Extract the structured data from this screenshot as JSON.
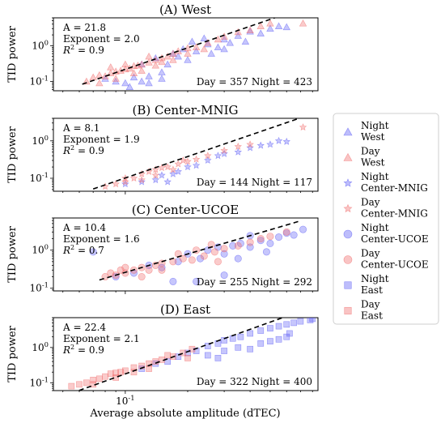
{
  "figure": {
    "xlabel": "Average absolute amplitude (dTEC)",
    "x_tick_label": "10^{-1}"
  },
  "legend": {
    "placement": "right",
    "entries": [
      {
        "line1": "Night",
        "line2": "West",
        "color": "#5b5bf5",
        "marker": "triangle"
      },
      {
        "line1": "Day",
        "line2": "West",
        "color": "#f06b6b",
        "marker": "triangle"
      },
      {
        "line1": "Night",
        "line2": "Center-MNIG",
        "color": "#5b5bf5",
        "marker": "star"
      },
      {
        "line1": "Day",
        "line2": "Center-MNIG",
        "color": "#f06b6b",
        "marker": "star"
      },
      {
        "line1": "Night",
        "line2": "Center-UCOE",
        "color": "#5b5bf5",
        "marker": "circle"
      },
      {
        "line1": "Day",
        "line2": "Center-UCOE",
        "color": "#f06b6b",
        "marker": "circle"
      },
      {
        "line1": "Night",
        "line2": "East",
        "color": "#5b5bf5",
        "marker": "square"
      },
      {
        "line1": "Day",
        "line2": "East",
        "color": "#f06b6b",
        "marker": "square"
      }
    ]
  },
  "chart_data": [
    {
      "type": "scatter",
      "title": "(A) West",
      "ylabel": "TID power",
      "xscale": "log",
      "yscale": "log",
      "xlim": [
        0.045,
        0.85
      ],
      "ylim": [
        0.055,
        6
      ],
      "yticks": [
        {
          "v": 1,
          "label": "10^{0}"
        },
        {
          "v": 0.1,
          "label": "10^{-1}"
        }
      ],
      "marker": "triangle",
      "stats": {
        "A": "A = 21.8",
        "exponent": "Exponent = 2.0",
        "r2": "R^2 = 0.9",
        "counts": "Day = 357 Night = 423"
      },
      "fit": {
        "A": 21.8,
        "exponent": 2.0,
        "x_range": [
          0.062,
          0.75
        ]
      },
      "series": [
        {
          "name": "Day",
          "color": "#f06b6b",
          "points": [
            [
              0.065,
              0.1
            ],
            [
              0.07,
              0.13
            ],
            [
              0.075,
              0.15
            ],
            [
              0.08,
              0.14
            ],
            [
              0.085,
              0.17
            ],
            [
              0.09,
              0.19
            ],
            [
              0.095,
              0.2
            ],
            [
              0.1,
              0.22
            ],
            [
              0.105,
              0.23
            ],
            [
              0.11,
              0.27
            ],
            [
              0.115,
              0.28
            ],
            [
              0.12,
              0.3
            ],
            [
              0.13,
              0.34
            ],
            [
              0.14,
              0.4
            ],
            [
              0.15,
              0.45
            ],
            [
              0.16,
              0.5
            ],
            [
              0.17,
              0.6
            ],
            [
              0.18,
              0.7
            ],
            [
              0.2,
              0.85
            ],
            [
              0.22,
              0.9
            ],
            [
              0.25,
              1.2
            ],
            [
              0.28,
              1.5
            ],
            [
              0.3,
              1.8
            ],
            [
              0.35,
              2.4
            ],
            [
              0.4,
              2.7
            ],
            [
              0.45,
              3.5
            ],
            [
              0.5,
              4.2
            ],
            [
              0.72,
              4.2
            ],
            [
              0.09,
              0.12
            ],
            [
              0.1,
              0.3
            ],
            [
              0.12,
              0.2
            ],
            [
              0.13,
              0.5
            ],
            [
              0.15,
              0.35
            ],
            [
              0.17,
              0.4
            ],
            [
              0.2,
              0.6
            ],
            [
              0.24,
              0.8
            ],
            [
              0.075,
              0.09
            ],
            [
              0.085,
              0.25
            ],
            [
              0.11,
              0.17
            ],
            [
              0.14,
              0.28
            ]
          ]
        },
        {
          "name": "Night",
          "color": "#5b5bf5",
          "points": [
            [
              0.08,
              0.12
            ],
            [
              0.09,
              0.1
            ],
            [
              0.1,
              0.09
            ],
            [
              0.11,
              0.13
            ],
            [
              0.12,
              0.1
            ],
            [
              0.13,
              0.14
            ],
            [
              0.15,
              0.18
            ],
            [
              0.16,
              0.3
            ],
            [
              0.18,
              0.5
            ],
            [
              0.2,
              0.4
            ],
            [
              0.22,
              0.7
            ],
            [
              0.25,
              1.1
            ],
            [
              0.28,
              0.9
            ],
            [
              0.3,
              1.5
            ],
            [
              0.32,
              1.2
            ],
            [
              0.35,
              1.9
            ],
            [
              0.4,
              2.5
            ],
            [
              0.45,
              2.2
            ],
            [
              0.5,
              3.0
            ],
            [
              0.55,
              3.5
            ],
            [
              0.6,
              3.3
            ],
            [
              0.12,
              0.3
            ],
            [
              0.14,
              0.45
            ],
            [
              0.17,
              0.6
            ],
            [
              0.19,
              0.8
            ],
            [
              0.21,
              1.3
            ],
            [
              0.24,
              1.6
            ],
            [
              0.26,
              0.6
            ],
            [
              0.3,
              0.8
            ],
            [
              0.38,
              1.3
            ],
            [
              0.13,
              0.09
            ],
            [
              0.15,
              0.12
            ],
            [
              0.105,
              0.07
            ]
          ]
        }
      ]
    },
    {
      "type": "scatter",
      "title": "(B) Center-MNIG",
      "ylabel": "TID power",
      "xscale": "log",
      "yscale": "log",
      "xlim": [
        0.045,
        0.85
      ],
      "ylim": [
        0.045,
        4
      ],
      "yticks": [
        {
          "v": 1,
          "label": "10^{0}"
        },
        {
          "v": 0.1,
          "label": "10^{-1}"
        }
      ],
      "marker": "star",
      "stats": {
        "A": "A = 8.1",
        "exponent": "Exponent = 1.9",
        "r2": "R^2 = 0.9",
        "counts": "Day = 144 Night = 117"
      },
      "fit": {
        "A": 8.1,
        "exponent": 1.9,
        "x_range": [
          0.07,
          0.7
        ]
      },
      "series": [
        {
          "name": "Day",
          "color": "#f06b6b",
          "points": [
            [
              0.08,
              0.06
            ],
            [
              0.09,
              0.07
            ],
            [
              0.1,
              0.08
            ],
            [
              0.11,
              0.1
            ],
            [
              0.12,
              0.13
            ],
            [
              0.13,
              0.15
            ],
            [
              0.14,
              0.17
            ],
            [
              0.15,
              0.19
            ],
            [
              0.16,
              0.2
            ],
            [
              0.18,
              0.24
            ],
            [
              0.2,
              0.28
            ],
            [
              0.22,
              0.32
            ],
            [
              0.25,
              0.4
            ],
            [
              0.3,
              0.55
            ],
            [
              0.35,
              0.7
            ],
            [
              0.4,
              0.8
            ],
            [
              0.72,
              2.3
            ],
            [
              0.1,
              0.1
            ],
            [
              0.12,
              0.09
            ],
            [
              0.14,
              0.12
            ],
            [
              0.17,
              0.17
            ],
            [
              0.19,
              0.3
            ]
          ]
        },
        {
          "name": "Night",
          "color": "#5b5bf5",
          "points": [
            [
              0.1,
              0.07
            ],
            [
              0.12,
              0.08
            ],
            [
              0.14,
              0.09
            ],
            [
              0.16,
              0.08
            ],
            [
              0.18,
              0.15
            ],
            [
              0.2,
              0.2
            ],
            [
              0.22,
              0.22
            ],
            [
              0.25,
              0.3
            ],
            [
              0.28,
              0.4
            ],
            [
              0.3,
              0.45
            ],
            [
              0.35,
              0.5
            ],
            [
              0.4,
              0.65
            ],
            [
              0.45,
              0.75
            ],
            [
              0.5,
              0.8
            ],
            [
              0.55,
              1.0
            ],
            [
              0.6,
              0.95
            ],
            [
              0.17,
              0.13
            ],
            [
              0.15,
              0.12
            ]
          ]
        }
      ]
    },
    {
      "type": "scatter",
      "title": "(C) Center-UCOE",
      "ylabel": "TID power",
      "xscale": "log",
      "yscale": "log",
      "xlim": [
        0.045,
        0.85
      ],
      "ylim": [
        0.085,
        7
      ],
      "yticks": [
        {
          "v": 1,
          "label": "10^{0}"
        },
        {
          "v": 0.1,
          "label": "10^{-1}"
        }
      ],
      "marker": "circle",
      "stats": {
        "A": "A = 10.4",
        "exponent": "Exponent = 1.6",
        "r2": "R^2 = 0.7",
        "counts": "Day = 255 Night = 292"
      },
      "fit": {
        "A": 10.4,
        "exponent": 1.6,
        "x_range": [
          0.075,
          0.7
        ]
      },
      "series": [
        {
          "name": "Day",
          "color": "#f06b6b",
          "points": [
            [
              0.08,
              0.2
            ],
            [
              0.085,
              0.25
            ],
            [
              0.09,
              0.22
            ],
            [
              0.095,
              0.3
            ],
            [
              0.1,
              0.25
            ],
            [
              0.11,
              0.3
            ],
            [
              0.12,
              0.35
            ],
            [
              0.13,
              0.3
            ],
            [
              0.14,
              0.4
            ],
            [
              0.15,
              0.45
            ],
            [
              0.17,
              0.5
            ],
            [
              0.19,
              0.6
            ],
            [
              0.21,
              0.55
            ],
            [
              0.24,
              0.7
            ],
            [
              0.27,
              0.9
            ],
            [
              0.3,
              1.1
            ],
            [
              0.35,
              1.3
            ],
            [
              0.4,
              1.6
            ],
            [
              0.45,
              2.0
            ],
            [
              0.5,
              2.3
            ],
            [
              0.6,
              3.0
            ],
            [
              0.1,
              0.35
            ],
            [
              0.12,
              0.2
            ],
            [
              0.15,
              0.3
            ],
            [
              0.18,
              0.8
            ],
            [
              0.22,
              1.0
            ],
            [
              0.26,
              1.4
            ],
            [
              0.28,
              0.5
            ]
          ]
        },
        {
          "name": "Night",
          "color": "#5b5bf5",
          "points": [
            [
              0.07,
              0.9
            ],
            [
              0.09,
              0.2
            ],
            [
              0.11,
              0.25
            ],
            [
              0.13,
              0.4
            ],
            [
              0.15,
              0.35
            ],
            [
              0.18,
              0.5
            ],
            [
              0.2,
              0.8
            ],
            [
              0.23,
              0.6
            ],
            [
              0.25,
              1.0
            ],
            [
              0.28,
              1.2
            ],
            [
              0.3,
              0.8
            ],
            [
              0.33,
              1.3
            ],
            [
              0.36,
              1.5
            ],
            [
              0.4,
              1.2
            ],
            [
              0.45,
              1.8
            ],
            [
              0.5,
              1.5
            ],
            [
              0.55,
              2.2
            ],
            [
              0.6,
              2.8
            ],
            [
              0.65,
              2.5
            ],
            [
              0.72,
              3.5
            ],
            [
              0.22,
              0.15
            ],
            [
              0.3,
              0.22
            ],
            [
              0.35,
              0.6
            ],
            [
              0.4,
              2.4
            ],
            [
              0.48,
              0.9
            ],
            [
              0.17,
              0.15
            ]
          ]
        }
      ]
    },
    {
      "type": "scatter",
      "title": "(D) East",
      "ylabel": "TID power",
      "xscale": "log",
      "yscale": "log",
      "xlim": [
        0.045,
        0.85
      ],
      "ylim": [
        0.06,
        7
      ],
      "yticks": [
        {
          "v": 1,
          "label": "10^{0}"
        },
        {
          "v": 0.1,
          "label": "10^{-1}"
        }
      ],
      "marker": "square",
      "stats": {
        "A": "A = 22.4",
        "exponent": "Exponent = 2.1",
        "r2": "R^2 = 0.9",
        "counts": "Day = 322 Night = 400"
      },
      "fit": {
        "A": 22.4,
        "exponent": 2.1,
        "x_range": [
          0.055,
          0.8
        ]
      },
      "series": [
        {
          "name": "Day",
          "color": "#f06b6b",
          "points": [
            [
              0.055,
              0.08
            ],
            [
              0.06,
              0.09
            ],
            [
              0.065,
              0.1
            ],
            [
              0.07,
              0.12
            ],
            [
              0.075,
              0.13
            ],
            [
              0.08,
              0.15
            ],
            [
              0.085,
              0.18
            ],
            [
              0.09,
              0.19
            ],
            [
              0.095,
              0.2
            ],
            [
              0.1,
              0.22
            ],
            [
              0.11,
              0.27
            ],
            [
              0.12,
              0.3
            ],
            [
              0.13,
              0.35
            ],
            [
              0.14,
              0.4
            ],
            [
              0.15,
              0.45
            ],
            [
              0.17,
              0.55
            ],
            [
              0.19,
              0.7
            ],
            [
              0.21,
              0.9
            ],
            [
              0.07,
              0.09
            ],
            [
              0.09,
              0.14
            ],
            [
              0.11,
              0.2
            ],
            [
              0.13,
              0.25
            ],
            [
              0.16,
              0.6
            ],
            [
              0.2,
              0.5
            ]
          ]
        },
        {
          "name": "Night",
          "color": "#5b5bf5",
          "points": [
            [
              0.12,
              0.25
            ],
            [
              0.14,
              0.35
            ],
            [
              0.16,
              0.4
            ],
            [
              0.18,
              0.55
            ],
            [
              0.2,
              0.7
            ],
            [
              0.22,
              0.8
            ],
            [
              0.25,
              1.1
            ],
            [
              0.28,
              1.3
            ],
            [
              0.3,
              1.6
            ],
            [
              0.33,
              1.8
            ],
            [
              0.36,
              2.0
            ],
            [
              0.4,
              2.5
            ],
            [
              0.45,
              3.0
            ],
            [
              0.5,
              3.5
            ],
            [
              0.55,
              4.0
            ],
            [
              0.6,
              4.5
            ],
            [
              0.65,
              5.0
            ],
            [
              0.7,
              5.5
            ],
            [
              0.78,
              6.0
            ],
            [
              0.8,
              6.5
            ],
            [
              0.3,
              0.8
            ],
            [
              0.35,
              1.0
            ],
            [
              0.4,
              0.9
            ],
            [
              0.45,
              1.3
            ],
            [
              0.5,
              1.5
            ],
            [
              0.55,
              1.7
            ],
            [
              0.6,
              2.0
            ],
            [
              0.62,
              2.5
            ],
            [
              0.25,
              0.6
            ],
            [
              0.28,
              0.5
            ]
          ]
        }
      ]
    }
  ]
}
